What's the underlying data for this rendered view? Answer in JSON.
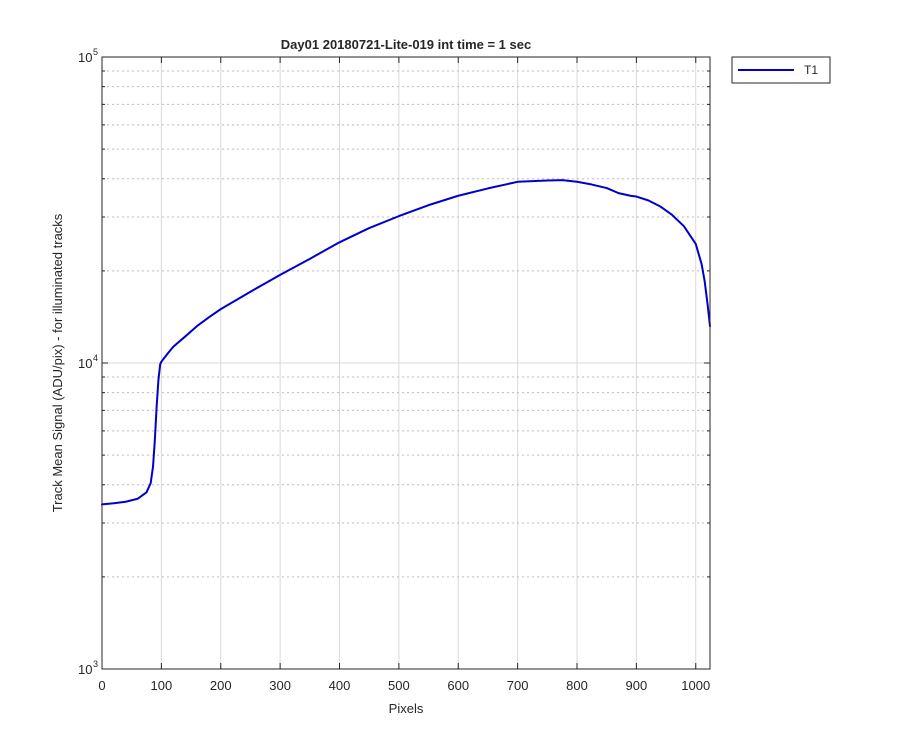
{
  "chart_data": {
    "type": "line",
    "title": "Day01 20180721-Lite-019 int time = 1 sec",
    "xlabel": "Pixels",
    "ylabel": "Track Mean Signal (ADU/pix) - for illuminated tracks",
    "xlim": [
      0,
      1024
    ],
    "ylim": [
      1000,
      100000
    ],
    "yscale": "log",
    "x_ticks": [
      0,
      100,
      200,
      300,
      400,
      500,
      600,
      700,
      800,
      900,
      1000
    ],
    "x_tick_labels": [
      "0",
      "100",
      "200",
      "300",
      "400",
      "500",
      "600",
      "700",
      "800",
      "900",
      "1000"
    ],
    "y_ticks": [
      {
        "value": 1000,
        "base": "10",
        "exp": "3"
      },
      {
        "value": 10000,
        "base": "10",
        "exp": "4"
      },
      {
        "value": 100000,
        "base": "10",
        "exp": "5"
      }
    ],
    "grid": true,
    "legend_position": "outside-top-right",
    "colors": {
      "series": "#0000cc",
      "grid": "#d9d9d9",
      "axis": "#262626"
    },
    "series": [
      {
        "name": "T1",
        "x": [
          0,
          20,
          40,
          60,
          75,
          82,
          86,
          89,
          92,
          95,
          98,
          100,
          110,
          120,
          140,
          160,
          180,
          200,
          250,
          300,
          350,
          400,
          450,
          500,
          550,
          600,
          650,
          700,
          725,
          750,
          775,
          800,
          825,
          850,
          870,
          890,
          900,
          920,
          940,
          960,
          980,
          1000,
          1010,
          1015,
          1020,
          1024
        ],
        "y": [
          3450,
          3480,
          3520,
          3600,
          3780,
          4050,
          4600,
          5600,
          7200,
          8800,
          9900,
          10100,
          10700,
          11300,
          12200,
          13200,
          14100,
          15000,
          17100,
          19400,
          21900,
          24800,
          27600,
          30200,
          32800,
          35200,
          37200,
          39100,
          39300,
          39500,
          39600,
          39100,
          38300,
          37300,
          35900,
          35200,
          35000,
          34000,
          32500,
          30500,
          28000,
          24500,
          21000,
          18500,
          15500,
          13200
        ]
      }
    ]
  }
}
